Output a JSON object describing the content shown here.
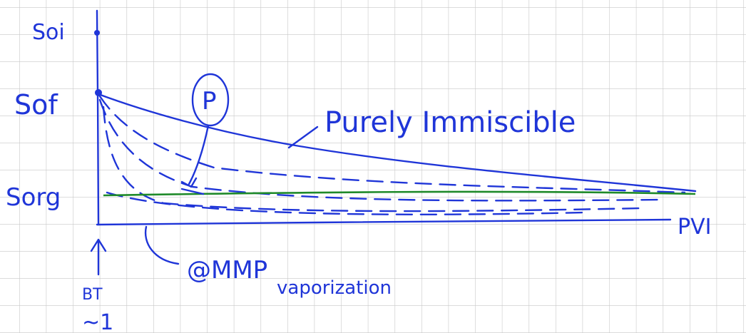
{
  "axis_labels": {
    "soi": "Soi",
    "sof": "Sof",
    "sorg": "Sorg",
    "x_axis": "PVI",
    "bt": "BT",
    "bt_value": "~1"
  },
  "annotations": {
    "purely_immiscible": "Purely Immiscible",
    "point": "P",
    "mmp": "@MMP",
    "vaporization": "vaporization"
  }
}
